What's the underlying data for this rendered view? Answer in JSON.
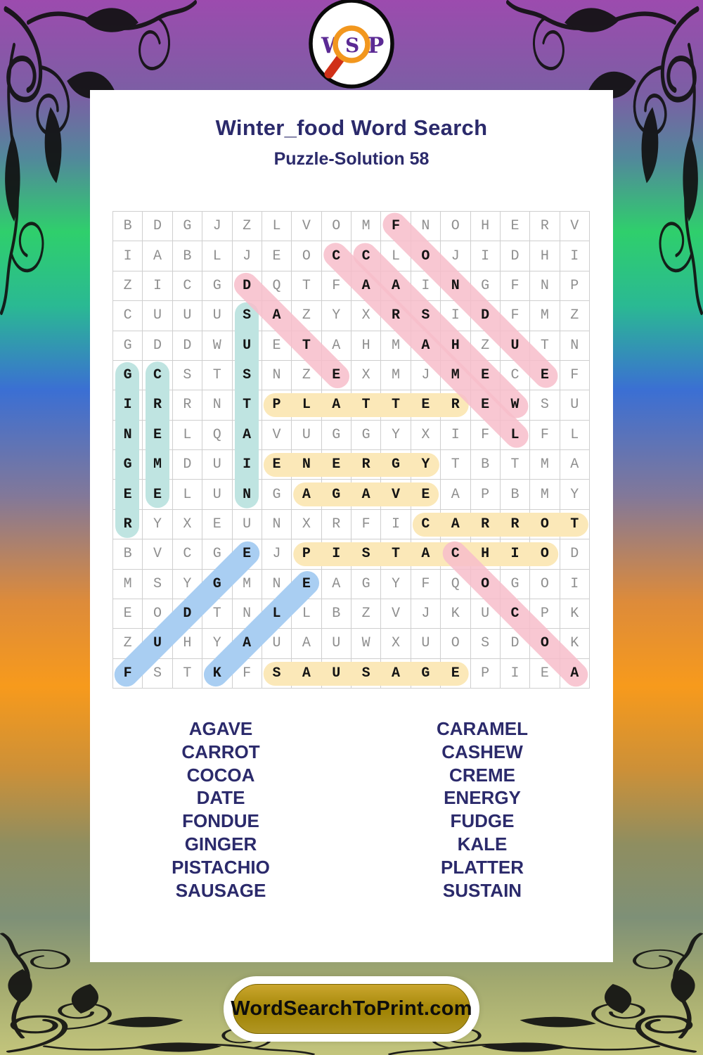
{
  "logo": {
    "w": "W",
    "s": "S",
    "p": "P"
  },
  "header": {
    "title": "Winter_food Word Search",
    "subtitle": "Puzzle-Solution 58"
  },
  "puzzle": {
    "rows": [
      "BDGJZLVOMFNOHERV",
      "IABLJEOCCLOJIDHI",
      "ZICGDQTFAAINGFNP",
      "CUUUSAZYXRSIDFMZ",
      "GDDWUETAHMAHZUTN",
      "GCSTSNZEXMJMECEF",
      "IRRNTPLATTEREWSU",
      "NELQAVUGGYXIFLFL",
      "GMDUIENERGYTBTMA",
      "EELUNGAGAVEAPBMY",
      "RYXEUNXRFICARROT",
      "BVCGEJPISTACHIOD",
      "MSYGMNEAGYFQOGOI",
      "EODTNLLBZVJKUCPK",
      "ZUHYAUAUWXUOSDOK",
      "FSTKFSAUSAGEPIEA"
    ],
    "placements": [
      {
        "word": "AGAVE",
        "row": 10,
        "col": 7,
        "dir": "h",
        "color": "highlight_yellow"
      },
      {
        "word": "CARROT",
        "row": 11,
        "col": 11,
        "dir": "h",
        "color": "highlight_yellow"
      },
      {
        "word": "ENERGY",
        "row": 9,
        "col": 6,
        "dir": "h",
        "color": "highlight_yellow"
      },
      {
        "word": "PISTACHIO",
        "row": 12,
        "col": 7,
        "dir": "h",
        "color": "highlight_yellow"
      },
      {
        "word": "PLATTER",
        "row": 7,
        "col": 6,
        "dir": "h",
        "color": "highlight_yellow"
      },
      {
        "word": "SAUSAGE",
        "row": 16,
        "col": 6,
        "dir": "h",
        "color": "highlight_yellow"
      },
      {
        "word": "CREME",
        "row": 6,
        "col": 2,
        "dir": "v",
        "color": "highlight_teal"
      },
      {
        "word": "GINGER",
        "row": 6,
        "col": 1,
        "dir": "v",
        "color": "highlight_teal"
      },
      {
        "word": "SUSTAIN",
        "row": 4,
        "col": 5,
        "dir": "v",
        "color": "highlight_teal"
      },
      {
        "word": "FUDGE",
        "row": 16,
        "col": 1,
        "dir": "ur",
        "color": "highlight_blue"
      },
      {
        "word": "KALE",
        "row": 16,
        "col": 4,
        "dir": "ur",
        "color": "highlight_blue"
      },
      {
        "word": "CARAMEL",
        "row": 2,
        "col": 8,
        "dir": "dr",
        "color": "highlight_pink"
      },
      {
        "word": "CASHEW",
        "row": 2,
        "col": 9,
        "dir": "dr",
        "color": "highlight_pink"
      },
      {
        "word": "COCOA",
        "row": 12,
        "col": 12,
        "dir": "dr",
        "color": "highlight_pink"
      },
      {
        "word": "DATE",
        "row": 3,
        "col": 5,
        "dir": "dr",
        "color": "highlight_pink"
      },
      {
        "word": "FONDUE",
        "row": 1,
        "col": 10,
        "dir": "dr",
        "color": "highlight_pink"
      }
    ]
  },
  "word_list": {
    "left": [
      "AGAVE",
      "CARROT",
      "COCOA",
      "DATE",
      "FONDUE",
      "GINGER",
      "PISTACHIO",
      "SAUSAGE"
    ],
    "right": [
      "CARAMEL",
      "CASHEW",
      "CREME",
      "ENERGY",
      "FUDGE",
      "KALE",
      "PLATTER",
      "SUSTAIN"
    ]
  },
  "footer": {
    "site": "WordSearchToPrint.com"
  },
  "colors": {
    "highlight_yellow": "#fbe8b8",
    "highlight_pink": "#f7bdca",
    "highlight_teal": "#bfe4e1",
    "highlight_blue": "#a9cef2",
    "title_navy": "#2b2a6b",
    "letter_grey": "#8f8f8f",
    "letter_solved": "#141414",
    "logo_purple": "#5b2a94",
    "magnifier_orange": "#f2971e",
    "handle_red": "#d03018"
  }
}
